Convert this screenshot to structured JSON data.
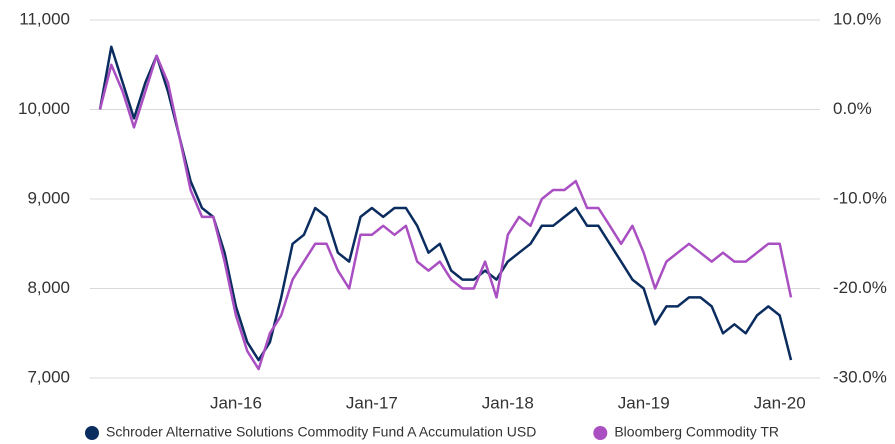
{
  "chart_data": {
    "type": "line",
    "x": [
      null,
      null,
      null,
      null,
      null,
      null,
      null,
      null,
      null,
      null,
      null,
      null,
      "Jan-16",
      null,
      null,
      null,
      null,
      null,
      null,
      null,
      null,
      null,
      null,
      null,
      "Jan-17",
      null,
      null,
      null,
      null,
      null,
      null,
      null,
      null,
      null,
      null,
      null,
      "Jan-18",
      null,
      null,
      null,
      null,
      null,
      null,
      null,
      null,
      null,
      null,
      null,
      "Jan-19",
      null,
      null,
      null,
      null,
      null,
      null,
      null,
      null,
      null,
      null,
      null,
      "Jan-20",
      null
    ],
    "series": [
      {
        "name": "Schroder Alternative Solutions Commodity Fund A Accumulation USD",
        "color": "#0b2c5f",
        "values": [
          10000,
          10700,
          10300,
          9900,
          10300,
          10600,
          10200,
          9700,
          9200,
          8900,
          8800,
          8400,
          7800,
          7400,
          7200,
          7400,
          7900,
          8500,
          8600,
          8900,
          8800,
          8400,
          8300,
          8800,
          8900,
          8800,
          8900,
          8900,
          8700,
          8400,
          8500,
          8200,
          8100,
          8100,
          8200,
          8100,
          8300,
          8400,
          8500,
          8700,
          8700,
          8800,
          8900,
          8700,
          8700,
          8500,
          8300,
          8100,
          8000,
          7600,
          7800,
          7800,
          7900,
          7900,
          7800,
          7500,
          7600,
          7500,
          7700,
          7800,
          7700,
          7200
        ]
      },
      {
        "name": "Bloomberg Commodity TR",
        "color": "#a94fc2",
        "values": [
          10000,
          10500,
          10200,
          9800,
          10200,
          10600,
          10300,
          9700,
          9100,
          8800,
          8800,
          8300,
          7700,
          7300,
          7100,
          7500,
          7700,
          8100,
          8300,
          8500,
          8500,
          8200,
          8000,
          8600,
          8600,
          8700,
          8600,
          8700,
          8300,
          8200,
          8300,
          8100,
          8000,
          8000,
          8300,
          7900,
          8600,
          8800,
          8700,
          9000,
          9100,
          9100,
          9200,
          8900,
          8900,
          8700,
          8500,
          8700,
          8400,
          8000,
          8300,
          8400,
          8500,
          8400,
          8300,
          8400,
          8300,
          8300,
          8400,
          8500,
          8500,
          7900
        ]
      }
    ],
    "ylim": [
      7000,
      11000
    ],
    "yticks": [
      {
        "value": 7000,
        "label": "7,000"
      },
      {
        "value": 8000,
        "label": "8,000"
      },
      {
        "value": 9000,
        "label": "9,000"
      },
      {
        "value": 10000,
        "label": "10,000"
      },
      {
        "value": 11000,
        "label": "11,000"
      }
    ],
    "y2lim": [
      -30,
      10
    ],
    "y2ticks": [
      {
        "value": -30,
        "label": "-30.0%"
      },
      {
        "value": -20,
        "label": "-20.0%"
      },
      {
        "value": -10,
        "label": "-10.0%"
      },
      {
        "value": 0,
        "label": "0.0%"
      },
      {
        "value": 10,
        "label": "10.0%"
      }
    ],
    "grid": true,
    "legend": "bottom"
  }
}
